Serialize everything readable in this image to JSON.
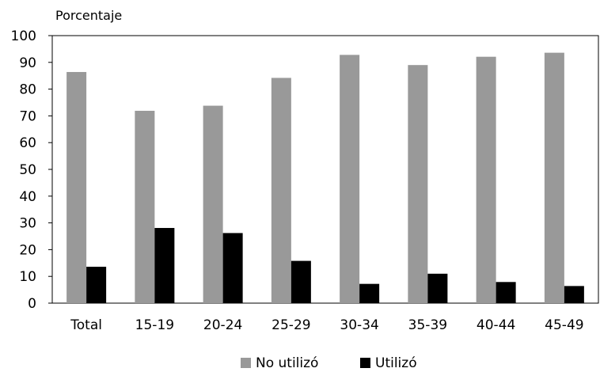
{
  "chart_data": {
    "type": "bar",
    "ylabel": "Porcentaje",
    "categories": [
      "Total",
      "15-19",
      "20-24",
      "25-29",
      "30-34",
      "35-39",
      "40-44",
      "45-49"
    ],
    "series": [
      {
        "name": "No utilizó",
        "color": "#999999",
        "values": [
          86.4,
          71.9,
          73.8,
          84.2,
          92.8,
          89.0,
          92.1,
          93.6
        ]
      },
      {
        "name": "Utilizó",
        "color": "#000000",
        "values": [
          13.6,
          28.1,
          26.2,
          15.8,
          7.2,
          11.0,
          7.9,
          6.4
        ]
      }
    ],
    "ylim": [
      0,
      100
    ],
    "yticks": [
      "0",
      "10",
      "20",
      "30",
      "40",
      "50",
      "60",
      "70",
      "80",
      "90",
      "100"
    ],
    "grid": false,
    "legend_position": "bottom-center"
  }
}
